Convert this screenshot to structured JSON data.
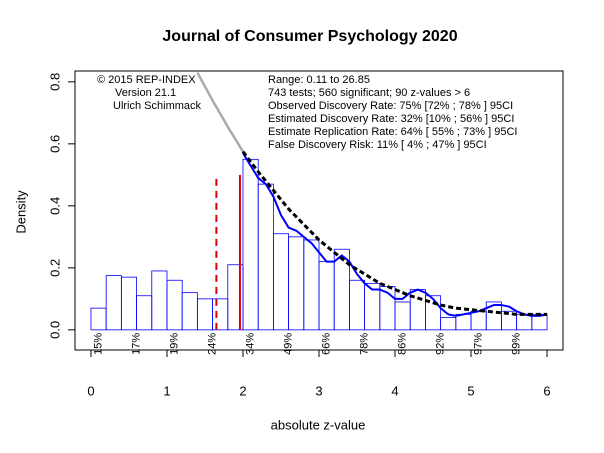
{
  "chart_data": {
    "type": "histogram",
    "title": "Journal of Consumer Psychology 2020",
    "xlabel": "absolute z-value",
    "ylabel": "Density",
    "bins": [
      0,
      0.2,
      0.4,
      0.6,
      0.8,
      1.0,
      1.2,
      1.4,
      1.6,
      1.8,
      2.0,
      2.2,
      2.4,
      2.6,
      2.8,
      3.0,
      3.2,
      3.4,
      3.6,
      3.8,
      4.0,
      4.2,
      4.4,
      4.6,
      4.8,
      5.0,
      5.2,
      5.4,
      5.6,
      5.8,
      6.0
    ],
    "values": [
      0.07,
      0.175,
      0.17,
      0.11,
      0.19,
      0.16,
      0.12,
      0.1,
      0.1,
      0.21,
      0.55,
      0.47,
      0.31,
      0.3,
      0.29,
      0.22,
      0.26,
      0.16,
      0.15,
      0.14,
      0.09,
      0.13,
      0.11,
      0.04,
      0.05,
      0.06,
      0.09,
      0.06,
      0.05,
      0.05
    ],
    "color": "#0000ff",
    "xlim": [
      -0.21,
      6.21
    ],
    "ylim": [
      -0.065,
      0.835
    ],
    "xticks": [
      0,
      1,
      2,
      3,
      4,
      5,
      6
    ],
    "yticks": [
      {
        "value": 0,
        "label": "0.0"
      },
      {
        "value": 0.2,
        "label": "0.2"
      },
      {
        "value": 0.4,
        "label": "0.4"
      },
      {
        "value": 0.6,
        "label": "0.6"
      },
      {
        "value": 0.8,
        "label": "0.8"
      }
    ],
    "lines": [
      {
        "color": "#aaaaaa",
        "dash": false,
        "width": 2.5,
        "x": [
          1.4,
          1.6,
          1.8,
          2.0
        ],
        "values": [
          0.83,
          0.74,
          0.655,
          0.575
        ]
      },
      {
        "color": "#0000ff",
        "dash": false,
        "width": 2,
        "x": [
          2.0,
          2.1,
          2.2,
          2.3,
          2.4,
          2.5,
          2.6,
          2.7,
          2.8,
          2.9,
          3.0,
          3.1,
          3.2,
          3.3,
          3.4,
          3.5,
          3.6,
          3.7,
          3.8,
          3.9,
          4.0,
          4.1,
          4.2,
          4.3,
          4.4,
          4.5,
          4.6,
          4.7,
          4.8,
          4.9,
          5.0,
          5.1,
          5.2,
          5.3,
          5.4,
          5.5,
          5.6,
          5.7,
          5.8,
          5.9,
          6.0
        ],
        "values": [
          0.57,
          0.53,
          0.49,
          0.47,
          0.43,
          0.37,
          0.33,
          0.32,
          0.3,
          0.28,
          0.25,
          0.22,
          0.22,
          0.24,
          0.22,
          0.18,
          0.15,
          0.13,
          0.13,
          0.12,
          0.1,
          0.1,
          0.12,
          0.13,
          0.12,
          0.1,
          0.07,
          0.05,
          0.045,
          0.05,
          0.055,
          0.06,
          0.07,
          0.08,
          0.08,
          0.075,
          0.06,
          0.05,
          0.045,
          0.045,
          0.05
        ]
      },
      {
        "color": "#000000",
        "dash": true,
        "width": 3,
        "x": [
          2.0,
          2.2,
          2.4,
          2.6,
          2.8,
          3.0,
          3.2,
          3.4,
          3.6,
          3.8,
          4.0,
          4.2,
          4.4,
          4.6,
          4.8,
          5.0,
          5.2,
          5.4,
          5.6,
          5.8,
          6.0
        ],
        "values": [
          0.575,
          0.51,
          0.45,
          0.39,
          0.34,
          0.29,
          0.25,
          0.21,
          0.18,
          0.15,
          0.13,
          0.11,
          0.095,
          0.08,
          0.07,
          0.065,
          0.06,
          0.055,
          0.05,
          0.05,
          0.05
        ]
      }
    ],
    "reference_lines": [
      {
        "x": 1.65,
        "y": 0.49,
        "color": "#dd0000",
        "dash": true
      },
      {
        "x": 1.96,
        "y": 0.5,
        "color": "#dd0000",
        "dash": false
      }
    ],
    "power_labels": {
      "x": [
        0.1,
        0.6,
        1.1,
        1.6,
        2.1,
        2.6,
        3.1,
        3.6,
        4.1,
        4.6,
        5.1,
        5.6
      ],
      "labels": [
        "15%",
        "17%",
        "19%",
        "24%",
        "34%",
        "49%",
        "66%",
        "78%",
        "86%",
        "92%",
        "97%",
        "99%"
      ]
    },
    "annotations_left": [
      "© 2015 REP-INDEX",
      "Version 21.1",
      "Ulrich Schimmack"
    ],
    "annotations_right": [
      "Range: 0.11 to 26.85",
      "743 tests; 560 significant; 90 z-values > 6",
      "Observed Discovery Rate: 75% [72% ; 78% ] 95CI",
      "Estimated Discovery Rate: 32% [10% ; 56% ] 95CI",
      "Estimate Replication Rate: 64% [ 55% ; 73% ] 95CI",
      "False Discovery Risk: 11% [ 4% ; 47% ] 95CI"
    ]
  }
}
